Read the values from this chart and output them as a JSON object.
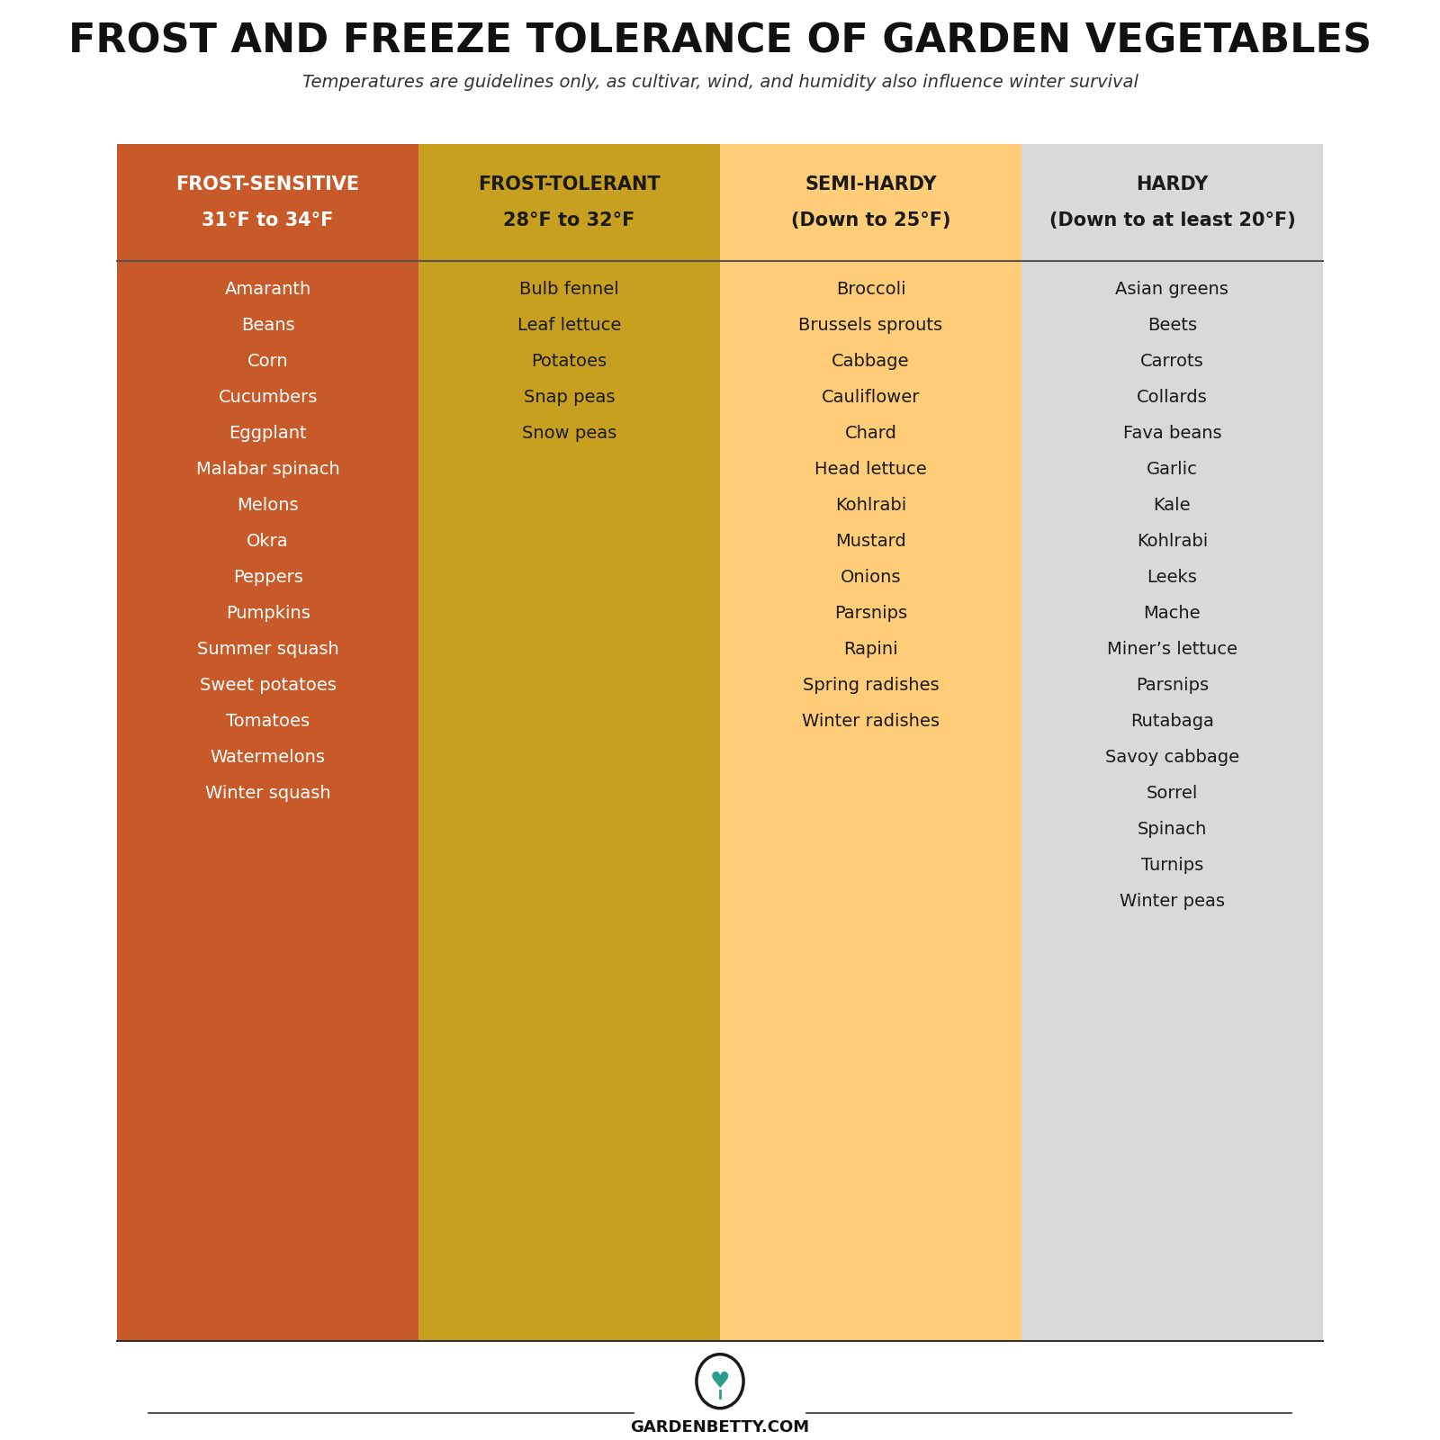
{
  "title": "FROST AND FREEZE TOLERANCE OF GARDEN VEGETABLES",
  "subtitle": "Temperatures are guidelines only, as cultivar, wind, and humidity also influence winter survival",
  "columns": [
    {
      "header_line1": "FROST-SENSITIVE",
      "header_line2": "31°F to 34°F",
      "bg_color": "#C85A2A",
      "text_color": "#FFFFFF",
      "header_text_color": "#FFFFFF",
      "items": [
        "Amaranth",
        "Beans",
        "Corn",
        "Cucumbers",
        "Eggplant",
        "Malabar spinach",
        "Melons",
        "Okra",
        "Peppers",
        "Pumpkins",
        "Summer squash",
        "Sweet potatoes",
        "Tomatoes",
        "Watermelons",
        "Winter squash"
      ]
    },
    {
      "header_line1": "FROST-TOLERANT",
      "header_line2": "28°F to 32°F",
      "bg_color": "#C8A020",
      "text_color": "#1a1a1a",
      "header_text_color": "#1a1a1a",
      "items": [
        "Bulb fennel",
        "Leaf lettuce",
        "Potatoes",
        "Snap peas",
        "Snow peas"
      ]
    },
    {
      "header_line1": "SEMI-HARDY",
      "header_line2": "(Down to 25°F)",
      "bg_color": "#FFCC77",
      "text_color": "#1a1a1a",
      "header_text_color": "#1a1a1a",
      "items": [
        "Broccoli",
        "Brussels sprouts",
        "Cabbage",
        "Cauliflower",
        "Chard",
        "Head lettuce",
        "Kohlrabi",
        "Mustard",
        "Onions",
        "Parsnips",
        "Rapini",
        "Spring radishes",
        "Winter radishes"
      ]
    },
    {
      "header_line1": "HARDY",
      "header_line2": "(Down to at least 20°F)",
      "bg_color": "#D9D9D9",
      "text_color": "#1a1a1a",
      "header_text_color": "#1a1a1a",
      "items": [
        "Asian greens",
        "Beets",
        "Carrots",
        "Collards",
        "Fava beans",
        "Garlic",
        "Kale",
        "Kohlrabi",
        "Leeks",
        "Mache",
        "Miner’s lettuce",
        "Parsnips",
        "Rutabaga",
        "Savoy cabbage",
        "Sorrel",
        "Spinach",
        "Turnips",
        "Winter peas"
      ]
    }
  ],
  "footer_text": "GARDENBETTY.COM",
  "logo_circle_color": "#1a1a1a",
  "logo_leaf_color": "#2a9d8f",
  "title_fontsize": 32,
  "subtitle_fontsize": 14,
  "header_fontsize": 15,
  "item_fontsize": 14,
  "footer_fontsize": 13
}
